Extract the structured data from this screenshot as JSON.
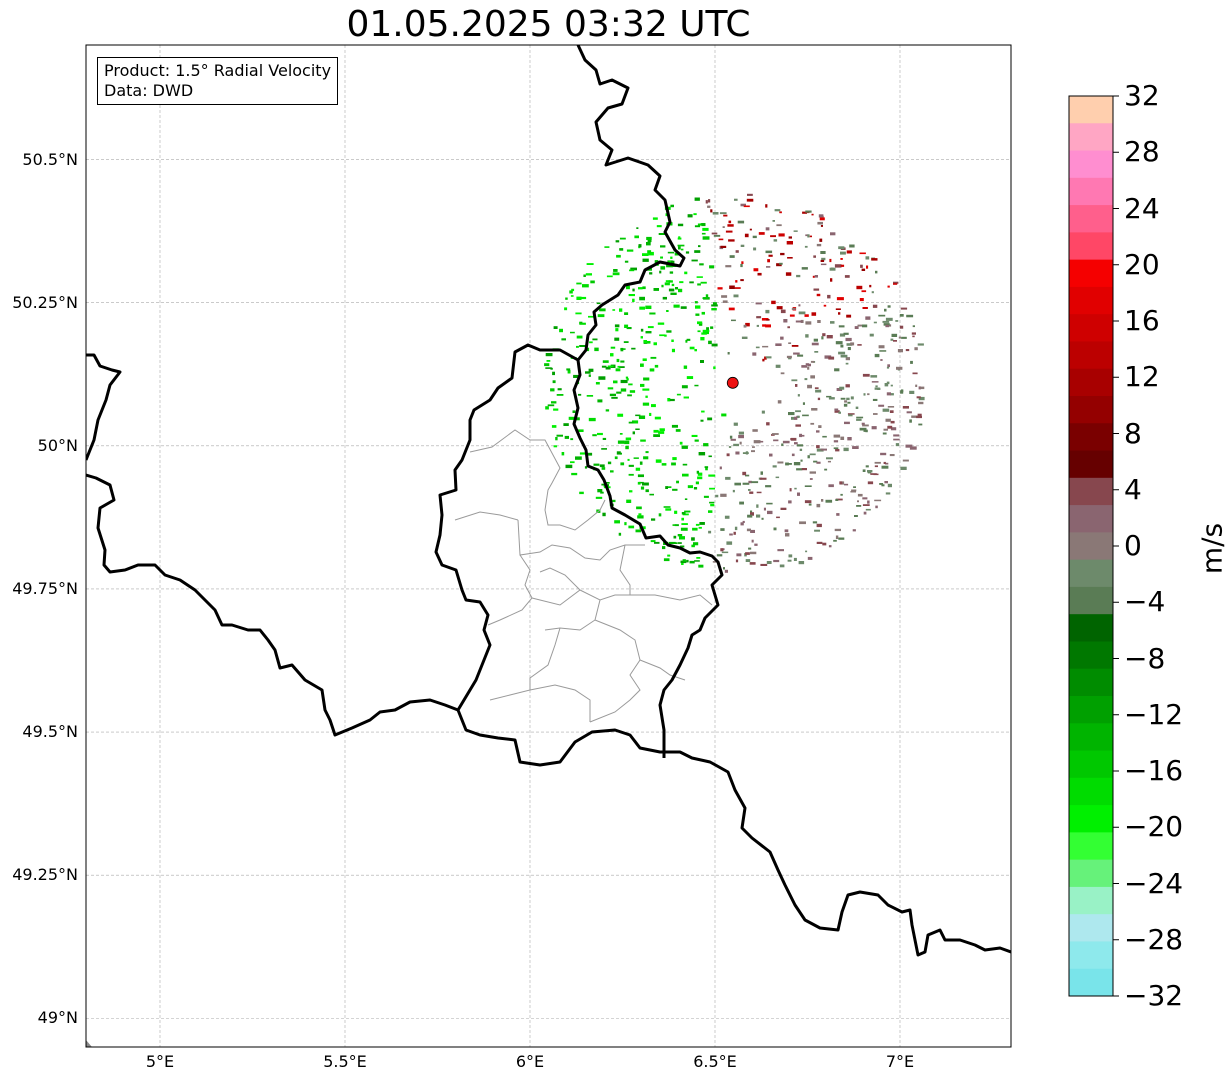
{
  "title": "01.05.2025 03:32 UTC",
  "info_box": {
    "product": "Product: 1.5° Radial Velocity",
    "data": "Data: DWD"
  },
  "map": {
    "lat_ticks": [
      "50.5°N",
      "50.25°N",
      "50°N",
      "49.75°N",
      "49.5°N",
      "49.25°N",
      "49°N"
    ],
    "lon_ticks": [
      "5°E",
      "5.5°E",
      "6°E",
      "6.5°E",
      "7°E"
    ],
    "extent": {
      "lon_min": 4.8,
      "lon_max": 7.3,
      "lat_min": 48.95,
      "lat_max": 50.7
    },
    "radar_site_color": "#ee1111",
    "radar_site": {
      "lon": 6.548,
      "lat": 50.11
    }
  },
  "colorbar": {
    "unit": "m/s",
    "ticks": [
      "32",
      "28",
      "24",
      "20",
      "16",
      "12",
      "8",
      "4",
      "0",
      "−4",
      "−8",
      "−12",
      "−16",
      "−20",
      "−24",
      "−28",
      "−32"
    ],
    "colors_top_to_bottom": [
      "#ffcfae",
      "#ffa6c4",
      "#ff8ed0",
      "#ff78b2",
      "#ff5f8c",
      "#ff4766",
      "#f50000",
      "#e10000",
      "#cf0000",
      "#bc0000",
      "#a80000",
      "#940000",
      "#7a0000",
      "#660000",
      "#87474e",
      "#8a6570",
      "#8a7876",
      "#6d8a6b",
      "#5a7c55",
      "#006400",
      "#007800",
      "#008c00",
      "#00a000",
      "#00b400",
      "#00c800",
      "#00dc00",
      "#00f000",
      "#33ff33",
      "#66f27a",
      "#99f2c6",
      "#aee8ee",
      "#8ee9ec",
      "#79e4ea"
    ]
  }
}
